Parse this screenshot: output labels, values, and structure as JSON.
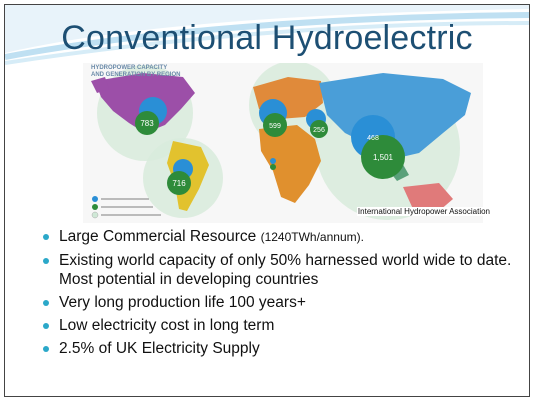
{
  "slide": {
    "title": "Conventional Hydroelectric",
    "map": {
      "title_line1": "HYDROPOWER CAPACITY",
      "title_line2": "AND GENERATION BY REGION",
      "credit": "International Hydropower Association",
      "labels": {
        "north_america": "783",
        "europe": "599",
        "eurasia": "256",
        "china": "468",
        "asia_generation": "1,501",
        "south_america": "716"
      }
    },
    "bullets": [
      {
        "text": "Large Commercial Resource ",
        "note": "(1240TWh/annum)."
      },
      {
        "text": "Existing world capacity of only 50% harnessed world wide to date. Most potential in developing countries",
        "note": ""
      },
      {
        "text": "Very long production life 100 years+",
        "note": ""
      },
      {
        "text": "Low electricity cost in long term",
        "note": ""
      },
      {
        "text": "2.5% of UK Electricity Supply",
        "note": ""
      }
    ]
  },
  "colors": {
    "title": "#1d4f73",
    "bullet": "#2ba8c9",
    "capacity_circle": "#2a8fd6",
    "generation_circle": "#2e8b3a",
    "potential_circle": "#cfe8d6"
  }
}
